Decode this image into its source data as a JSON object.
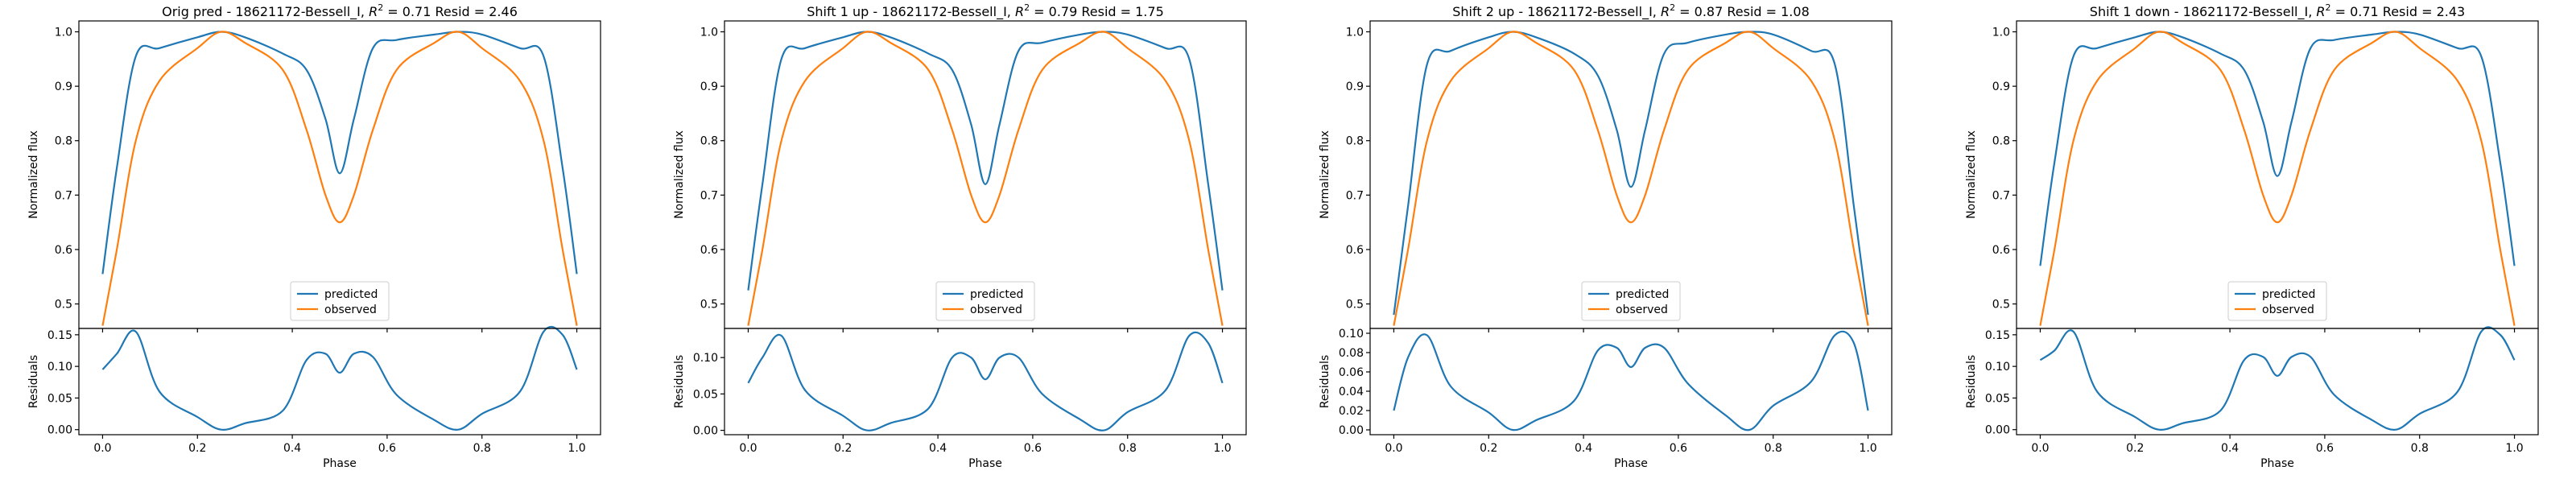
{
  "figure": {
    "colors": {
      "predicted": "#1f77b4",
      "observed": "#ff7f0e",
      "axis": "#000000"
    }
  },
  "chart_data": [
    {
      "type": "line",
      "title_prefix": "Orig pred - 18621172-Bessell_I, ",
      "r2_label": "R",
      "r2_value_text": " = 0.71 Resid = 2.46",
      "xlabel": "Phase",
      "ylabel_main": "Normalized flux",
      "ylabel_resid": "Residuals",
      "xlim": [
        -0.05,
        1.05
      ],
      "ylim_main": [
        0.455,
        1.02
      ],
      "ylim_resid": [
        -0.008,
        0.16
      ],
      "xticks": [
        0.0,
        0.2,
        0.4,
        0.6,
        0.8,
        1.0
      ],
      "xtick_labels": [
        "0.0",
        "0.2",
        "0.4",
        "0.6",
        "0.8",
        "1.0"
      ],
      "yticks_main": [
        0.5,
        0.6,
        0.7,
        0.8,
        0.9,
        1.0
      ],
      "ytick_labels_main": [
        "0.5",
        "0.6",
        "0.7",
        "0.8",
        "0.9",
        "1.0"
      ],
      "yticks_resid": [
        0.0,
        0.05,
        0.1,
        0.15
      ],
      "ytick_labels_resid": [
        "0.00",
        "0.05",
        "0.10",
        "0.15"
      ],
      "legend": {
        "placement": "lower center",
        "entries": [
          "predicted",
          "observed"
        ]
      },
      "x": [
        0.0,
        0.03,
        0.07,
        0.12,
        0.2,
        0.25,
        0.3,
        0.38,
        0.43,
        0.47,
        0.5,
        0.53,
        0.57,
        0.62,
        0.7,
        0.75,
        0.8,
        0.88,
        0.93,
        0.97,
        1.0
      ],
      "series": [
        {
          "name": "predicted",
          "values": [
            0.555,
            0.75,
            0.955,
            0.97,
            0.99,
            1.0,
            0.99,
            0.96,
            0.93,
            0.84,
            0.74,
            0.84,
            0.97,
            0.985,
            0.995,
            1.0,
            0.995,
            0.97,
            0.955,
            0.75,
            0.555
          ]
        },
        {
          "name": "observed",
          "values": [
            0.46,
            0.6,
            0.8,
            0.91,
            0.97,
            1.0,
            0.98,
            0.93,
            0.82,
            0.7,
            0.65,
            0.7,
            0.82,
            0.93,
            0.98,
            1.0,
            0.97,
            0.91,
            0.8,
            0.6,
            0.46
          ]
        }
      ],
      "residuals": [
        0.095,
        0.12,
        0.155,
        0.06,
        0.02,
        0.0,
        0.01,
        0.03,
        0.11,
        0.12,
        0.09,
        0.12,
        0.115,
        0.055,
        0.015,
        0.0,
        0.025,
        0.06,
        0.155,
        0.15,
        0.095
      ]
    },
    {
      "type": "line",
      "title_prefix": "Shift 1 up - 18621172-Bessell_I, ",
      "r2_label": "R",
      "r2_value_text": " = 0.79 Resid = 1.75",
      "xlabel": "Phase",
      "ylabel_main": "Normalized flux",
      "ylabel_resid": "Residuals",
      "xlim": [
        -0.05,
        1.05
      ],
      "ylim_main": [
        0.455,
        1.02
      ],
      "ylim_resid": [
        -0.006,
        0.14
      ],
      "xticks": [
        0.0,
        0.2,
        0.4,
        0.6,
        0.8,
        1.0
      ],
      "xtick_labels": [
        "0.0",
        "0.2",
        "0.4",
        "0.6",
        "0.8",
        "1.0"
      ],
      "yticks_main": [
        0.5,
        0.6,
        0.7,
        0.8,
        0.9,
        1.0
      ],
      "ytick_labels_main": [
        "0.5",
        "0.6",
        "0.7",
        "0.8",
        "0.9",
        "1.0"
      ],
      "yticks_resid": [
        0.0,
        0.05,
        0.1
      ],
      "ytick_labels_resid": [
        "0.00",
        "0.05",
        "0.10"
      ],
      "legend": {
        "placement": "lower center",
        "entries": [
          "predicted",
          "observed"
        ]
      },
      "x": [
        0.0,
        0.03,
        0.07,
        0.12,
        0.2,
        0.25,
        0.3,
        0.38,
        0.43,
        0.47,
        0.5,
        0.53,
        0.57,
        0.62,
        0.7,
        0.75,
        0.8,
        0.88,
        0.93,
        0.97,
        1.0
      ],
      "series": [
        {
          "name": "predicted",
          "values": [
            0.525,
            0.72,
            0.95,
            0.97,
            0.99,
            1.0,
            0.99,
            0.96,
            0.93,
            0.83,
            0.72,
            0.83,
            0.965,
            0.98,
            0.995,
            1.0,
            0.995,
            0.97,
            0.95,
            0.72,
            0.525
          ]
        },
        {
          "name": "observed",
          "values": [
            0.46,
            0.6,
            0.8,
            0.91,
            0.97,
            1.0,
            0.98,
            0.93,
            0.82,
            0.7,
            0.65,
            0.7,
            0.82,
            0.93,
            0.98,
            1.0,
            0.97,
            0.91,
            0.8,
            0.6,
            0.46
          ]
        }
      ],
      "residuals": [
        0.065,
        0.1,
        0.13,
        0.055,
        0.02,
        0.0,
        0.01,
        0.03,
        0.1,
        0.1,
        0.07,
        0.1,
        0.1,
        0.05,
        0.015,
        0.0,
        0.025,
        0.055,
        0.13,
        0.12,
        0.065
      ]
    },
    {
      "type": "line",
      "title_prefix": "Shift 2 up - 18621172-Bessell_I, ",
      "r2_label": "R",
      "r2_value_text": " = 0.87 Resid = 1.08",
      "xlabel": "Phase",
      "ylabel_main": "Normalized flux",
      "ylabel_resid": "Residuals",
      "xlim": [
        -0.05,
        1.05
      ],
      "ylim_main": [
        0.455,
        1.02
      ],
      "ylim_resid": [
        -0.005,
        0.105
      ],
      "xticks": [
        0.0,
        0.2,
        0.4,
        0.6,
        0.8,
        1.0
      ],
      "xtick_labels": [
        "0.0",
        "0.2",
        "0.4",
        "0.6",
        "0.8",
        "1.0"
      ],
      "yticks_main": [
        0.5,
        0.6,
        0.7,
        0.8,
        0.9,
        1.0
      ],
      "ytick_labels_main": [
        "0.5",
        "0.6",
        "0.7",
        "0.8",
        "0.9",
        "1.0"
      ],
      "yticks_resid": [
        0.0,
        0.02,
        0.04,
        0.06,
        0.08,
        0.1
      ],
      "ytick_labels_resid": [
        "0.00",
        "0.02",
        "0.04",
        "0.06",
        "0.08",
        "0.10"
      ],
      "legend": {
        "placement": "lower center",
        "entries": [
          "predicted",
          "observed"
        ]
      },
      "x": [
        0.0,
        0.03,
        0.07,
        0.12,
        0.2,
        0.25,
        0.3,
        0.38,
        0.43,
        0.47,
        0.5,
        0.53,
        0.57,
        0.62,
        0.7,
        0.75,
        0.8,
        0.88,
        0.93,
        0.97,
        1.0
      ],
      "series": [
        {
          "name": "predicted",
          "values": [
            0.48,
            0.68,
            0.94,
            0.965,
            0.99,
            1.0,
            0.99,
            0.96,
            0.92,
            0.82,
            0.715,
            0.82,
            0.96,
            0.98,
            0.995,
            1.0,
            0.995,
            0.965,
            0.94,
            0.68,
            0.48
          ]
        },
        {
          "name": "observed",
          "values": [
            0.46,
            0.6,
            0.8,
            0.91,
            0.97,
            1.0,
            0.98,
            0.93,
            0.82,
            0.7,
            0.65,
            0.7,
            0.82,
            0.93,
            0.98,
            1.0,
            0.97,
            0.91,
            0.8,
            0.6,
            0.46
          ]
        }
      ],
      "residuals": [
        0.02,
        0.075,
        0.098,
        0.045,
        0.018,
        0.0,
        0.01,
        0.03,
        0.082,
        0.085,
        0.065,
        0.085,
        0.085,
        0.048,
        0.015,
        0.0,
        0.025,
        0.05,
        0.098,
        0.09,
        0.02
      ]
    },
    {
      "type": "line",
      "title_prefix": "Shift 1 down - 18621172-Bessell_I, ",
      "r2_label": "R",
      "r2_value_text": " = 0.71 Resid = 2.43",
      "xlabel": "Phase",
      "ylabel_main": "Normalized flux",
      "ylabel_resid": "Residuals",
      "xlim": [
        -0.05,
        1.05
      ],
      "ylim_main": [
        0.455,
        1.02
      ],
      "ylim_resid": [
        -0.008,
        0.16
      ],
      "xticks": [
        0.0,
        0.2,
        0.4,
        0.6,
        0.8,
        1.0
      ],
      "xtick_labels": [
        "0.0",
        "0.2",
        "0.4",
        "0.6",
        "0.8",
        "1.0"
      ],
      "yticks_main": [
        0.5,
        0.6,
        0.7,
        0.8,
        0.9,
        1.0
      ],
      "ytick_labels_main": [
        "0.5",
        "0.6",
        "0.7",
        "0.8",
        "0.9",
        "1.0"
      ],
      "yticks_resid": [
        0.0,
        0.05,
        0.1,
        0.15
      ],
      "ytick_labels_resid": [
        "0.00",
        "0.05",
        "0.10",
        "0.15"
      ],
      "legend": {
        "placement": "lower center",
        "entries": [
          "predicted",
          "observed"
        ]
      },
      "x": [
        0.0,
        0.03,
        0.07,
        0.12,
        0.2,
        0.25,
        0.3,
        0.38,
        0.43,
        0.47,
        0.5,
        0.53,
        0.57,
        0.62,
        0.7,
        0.75,
        0.8,
        0.88,
        0.93,
        0.97,
        1.0
      ],
      "series": [
        {
          "name": "predicted",
          "values": [
            0.57,
            0.76,
            0.955,
            0.97,
            0.99,
            1.0,
            0.99,
            0.96,
            0.93,
            0.835,
            0.735,
            0.835,
            0.97,
            0.985,
            0.995,
            1.0,
            0.995,
            0.97,
            0.955,
            0.76,
            0.57
          ]
        },
        {
          "name": "observed",
          "values": [
            0.46,
            0.6,
            0.8,
            0.91,
            0.97,
            1.0,
            0.98,
            0.93,
            0.82,
            0.7,
            0.65,
            0.7,
            0.82,
            0.93,
            0.98,
            1.0,
            0.97,
            0.91,
            0.8,
            0.6,
            0.46
          ]
        }
      ],
      "residuals": [
        0.11,
        0.125,
        0.155,
        0.06,
        0.02,
        0.0,
        0.01,
        0.03,
        0.11,
        0.115,
        0.085,
        0.115,
        0.115,
        0.055,
        0.015,
        0.0,
        0.025,
        0.06,
        0.155,
        0.15,
        0.11
      ]
    }
  ]
}
